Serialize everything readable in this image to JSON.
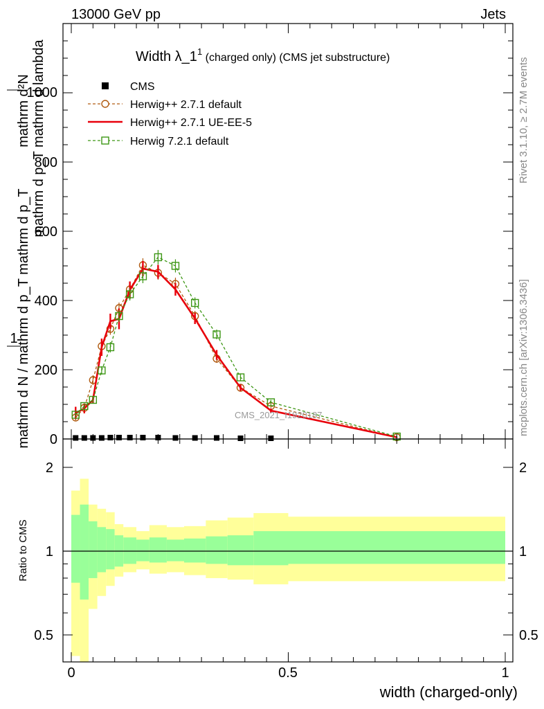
{
  "header": {
    "energy": "13000 GeV pp",
    "group": "Jets"
  },
  "title": {
    "main": "Width λ_1",
    "sup": "1",
    "suffix": " (charged only) (CMS jet substructure)"
  },
  "side_text": {
    "rivet": "Rivet 3.1.10, ≥ 2.7M events",
    "mcplots": "mcplots.cern.ch [arXiv:1306.3436]"
  },
  "watermark": "CMS_2021_I1920187",
  "axes": {
    "xlabel": "width (charged-only)",
    "ylabel_num_top": "1",
    "ylabel_den_top": "mathrm d N / mathrm d p_T mathrm d p_T",
    "ylabel_frac_num": "mathrm d²N",
    "ylabel_frac_den": "mathrm d p_T mathrm d lambda",
    "ratio_ylabel": "Ratio to CMS",
    "main_yticks": [
      "0",
      "200",
      "400",
      "600",
      "800",
      "1000"
    ],
    "ratio_yticks": [
      "0.5",
      "1",
      "2"
    ],
    "xticks": [
      "0",
      "0.5",
      "1"
    ]
  },
  "chart_data": {
    "type": "line",
    "xlim": [
      -0.02,
      1.02
    ],
    "ylim": [
      0,
      1200
    ],
    "ratio_ylim": [
      0.4,
      2.4
    ],
    "ratio_log_scale": true,
    "legend_position": "top-left",
    "series": [
      {
        "name": "CMS",
        "marker": "square",
        "color": "#000000",
        "x": [
          0.01,
          0.03,
          0.05,
          0.07,
          0.09,
          0.11,
          0.135,
          0.165,
          0.2,
          0.24,
          0.285,
          0.335,
          0.39,
          0.46
        ],
        "y": [
          3,
          3,
          3,
          3,
          4,
          4,
          4,
          4,
          4,
          3,
          3,
          3,
          2,
          2
        ]
      },
      {
        "name": "Herwig++ 2.7.1 default",
        "marker": "circle",
        "color": "#b05a10",
        "dash": true,
        "x": [
          0.01,
          0.03,
          0.05,
          0.07,
          0.09,
          0.11,
          0.135,
          0.165,
          0.2,
          0.24,
          0.285,
          0.335,
          0.39,
          0.46,
          0.75
        ],
        "y": [
          62,
          90,
          170,
          268,
          318,
          378,
          432,
          502,
          480,
          448,
          355,
          232,
          148,
          95,
          5
        ],
        "err": [
          8,
          9,
          14,
          15,
          17,
          16,
          20,
          20,
          20,
          18,
          15,
          12,
          8,
          6,
          1
        ]
      },
      {
        "name": "Herwig++ 2.7.1 UE-EE-5",
        "marker": "none",
        "color": "#e8000b",
        "dash": false,
        "x": [
          0.01,
          0.03,
          0.05,
          0.07,
          0.09,
          0.11,
          0.135,
          0.165,
          0.2,
          0.24,
          0.285,
          0.335,
          0.39,
          0.46,
          0.75
        ],
        "y": [
          75,
          88,
          113,
          265,
          340,
          347,
          430,
          492,
          483,
          432,
          348,
          243,
          148,
          82,
          5
        ],
        "err": [
          18,
          14,
          10,
          25,
          22,
          30,
          25,
          22,
          20,
          18,
          16,
          14,
          9,
          6,
          1
        ]
      },
      {
        "name": "Herwig 7.2.1 default",
        "marker": "open-square",
        "color": "#3c9614",
        "dash": true,
        "x": [
          0.01,
          0.03,
          0.05,
          0.07,
          0.09,
          0.11,
          0.135,
          0.165,
          0.2,
          0.24,
          0.285,
          0.335,
          0.39,
          0.46,
          0.75
        ],
        "y": [
          70,
          95,
          113,
          198,
          265,
          355,
          418,
          470,
          525,
          500,
          393,
          302,
          178,
          106,
          7
        ],
        "err": [
          6,
          8,
          8,
          12,
          15,
          17,
          18,
          20,
          21,
          19,
          16,
          14,
          10,
          7,
          1
        ]
      }
    ],
    "ratio_bands": {
      "x_edges": [
        0.0,
        0.02,
        0.04,
        0.06,
        0.08,
        0.1,
        0.12,
        0.15,
        0.18,
        0.22,
        0.26,
        0.31,
        0.36,
        0.42,
        0.5,
        1.0
      ],
      "green_low": [
        0.77,
        0.67,
        0.8,
        0.84,
        0.86,
        0.88,
        0.9,
        0.92,
        0.91,
        0.92,
        0.91,
        0.9,
        0.89,
        0.89,
        0.9
      ],
      "green_high": [
        1.35,
        1.47,
        1.28,
        1.22,
        1.2,
        1.14,
        1.12,
        1.1,
        1.12,
        1.1,
        1.11,
        1.13,
        1.14,
        1.18,
        1.18
      ],
      "yellow_low": [
        0.42,
        0.33,
        0.62,
        0.69,
        0.75,
        0.81,
        0.84,
        0.86,
        0.83,
        0.84,
        0.82,
        0.8,
        0.79,
        0.76,
        0.78
      ],
      "yellow_high": [
        1.65,
        1.82,
        1.47,
        1.42,
        1.38,
        1.25,
        1.22,
        1.18,
        1.24,
        1.22,
        1.23,
        1.29,
        1.32,
        1.37,
        1.33
      ]
    }
  }
}
